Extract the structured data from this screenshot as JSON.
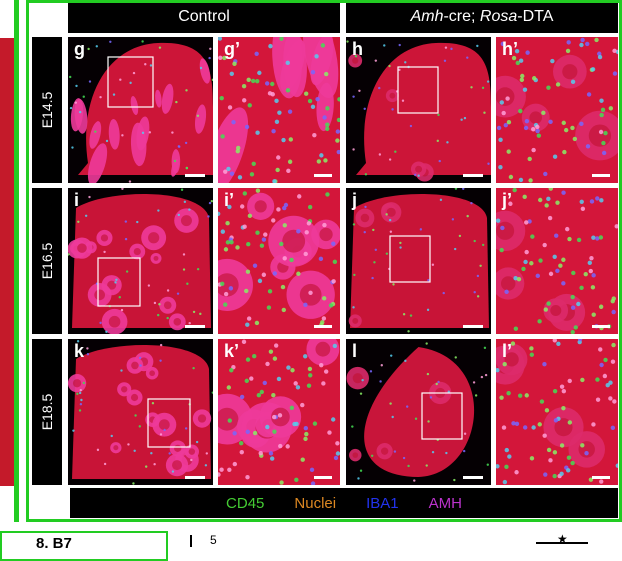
{
  "header": {
    "control": "Control",
    "mutant_parts": [
      "Amh",
      "-cre; ",
      "Rosa",
      "-DTA"
    ]
  },
  "rows": [
    {
      "label": "E14.5",
      "panels": [
        "g",
        "g’",
        "h",
        "h’"
      ]
    },
    {
      "label": "E16.5",
      "panels": [
        "i",
        "i’",
        "j",
        "j’"
      ]
    },
    {
      "label": "E18.5",
      "panels": [
        "k",
        "k’",
        "l",
        "l’"
      ]
    }
  ],
  "legend": [
    {
      "label": "CD45",
      "color": "#44cc33"
    },
    {
      "label": "Nuclei",
      "color": "#dd8822"
    },
    {
      "label": "IBA1",
      "color": "#2233ee"
    },
    {
      "label": "AMH",
      "color": "#bb33cc"
    }
  ],
  "bottom_fragments": {
    "left": "8. B7",
    "mid": "5"
  }
}
